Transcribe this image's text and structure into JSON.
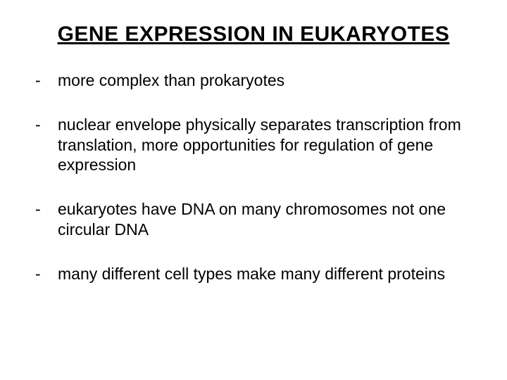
{
  "title": "GENE EXPRESSION IN EUKARYOTES",
  "bullets": [
    {
      "text": "more complex than prokaryotes"
    },
    {
      "text": "nuclear envelope physically separates transcription from translation,  more opportunities for regulation of gene expression"
    },
    {
      "text": "eukaryotes have DNA on many chromosomes not one circular DNA"
    },
    {
      "text": "many different cell types make many different proteins"
    }
  ],
  "colors": {
    "background": "#ffffff",
    "text": "#000000"
  },
  "typography": {
    "title_fontsize": 30,
    "body_fontsize": 23,
    "font_family": "Comic Sans MS"
  },
  "bullet_marker": "-"
}
